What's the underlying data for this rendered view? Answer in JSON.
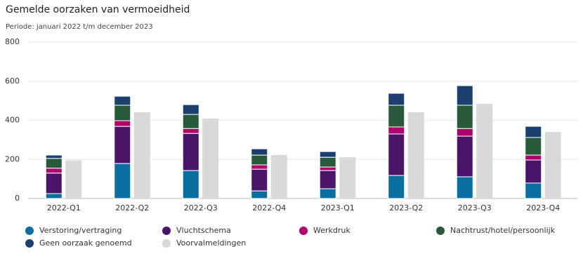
{
  "chart_data": {
    "type": "bar",
    "title": "Gemelde oorzaken van vermoeidheid",
    "subtitle": "Periode: januari 2022 t/m december 2023",
    "categories": [
      "2022-Q1",
      "2022-Q2",
      "2022-Q3",
      "2022-Q4",
      "2023-Q1",
      "2023-Q2",
      "2023-Q3",
      "2023-Q4"
    ],
    "series": [
      {
        "name": "Verstoring/vertraging",
        "color": "#0b6ea0",
        "stacked": true,
        "values": [
          25,
          179,
          143,
          39,
          50,
          118,
          111,
          79
        ]
      },
      {
        "name": "Vluchtschema",
        "color": "#4a1468",
        "stacked": true,
        "values": [
          105,
          190,
          190,
          111,
          93,
          212,
          208,
          118
        ]
      },
      {
        "name": "Werkdruk",
        "color": "#b0006e",
        "stacked": true,
        "values": [
          25,
          29,
          25,
          22,
          18,
          36,
          39,
          25
        ]
      },
      {
        "name": "Nachtrust/hotel/persoonlijk",
        "color": "#275a38",
        "stacked": true,
        "values": [
          50,
          79,
          72,
          50,
          50,
          111,
          119,
          90
        ]
      },
      {
        "name": "Geen oorzaak genoemd",
        "color": "#1b3f6e",
        "stacked": true,
        "values": [
          17,
          46,
          50,
          32,
          29,
          61,
          100,
          57
        ]
      },
      {
        "name": "Voorvalmeldingen",
        "color": "#d9d9d9",
        "stacked": false,
        "values": [
          195,
          441,
          409,
          222,
          211,
          441,
          484,
          340
        ]
      }
    ],
    "ylim": [
      0,
      800
    ],
    "yticks": [
      0,
      200,
      400,
      600,
      800
    ],
    "grid": true
  }
}
